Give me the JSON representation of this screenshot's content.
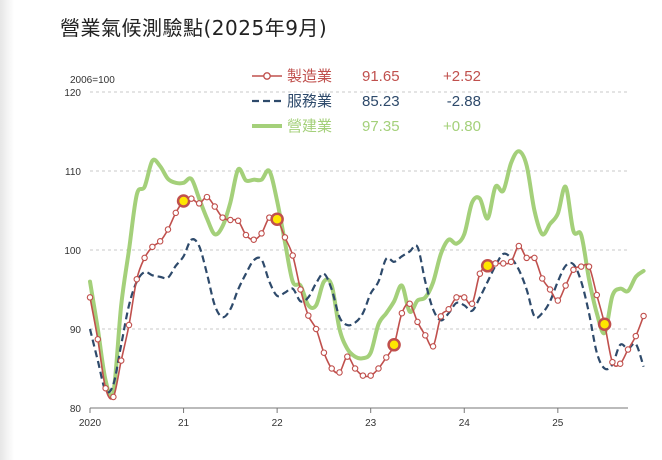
{
  "title": "營業氣候測驗點(2025年9月)",
  "chart_data": {
    "type": "line",
    "unit_label": "2006=100",
    "ylim": [
      80,
      120
    ],
    "yticks": [
      80,
      90,
      100,
      110,
      120
    ],
    "xlim": [
      2020.0,
      2025.75
    ],
    "xticks": [
      {
        "x": 2020,
        "label": "2020"
      },
      {
        "x": 2021,
        "label": "21"
      },
      {
        "x": 2022,
        "label": "22"
      },
      {
        "x": 2023,
        "label": "23"
      },
      {
        "x": 2024,
        "label": "24"
      },
      {
        "x": 2025,
        "label": "25"
      }
    ],
    "grid": "horizontal dashed",
    "legend_position": "top-center",
    "series": [
      {
        "name": "製造業",
        "latest": "91.65",
        "change": "+2.52",
        "color": "#c0504d",
        "style": "solid-markers",
        "x_start": 2020.0,
        "x_step": 0.0833333,
        "values": [
          94.0,
          88.7,
          82.5,
          81.4,
          86.0,
          90.5,
          96.3,
          99.0,
          100.4,
          101.1,
          102.6,
          104.7,
          106.2,
          106.5,
          105.9,
          106.7,
          105.5,
          104.1,
          103.8,
          103.7,
          101.9,
          101.3,
          102.1,
          104.1,
          103.9,
          101.6,
          99.3,
          95.0,
          91.7,
          90.0,
          87.0,
          85.0,
          84.5,
          86.5,
          85.0,
          84.1,
          84.1,
          85.0,
          86.4,
          88.0,
          92.0,
          93.2,
          90.9,
          89.2,
          87.8,
          91.6,
          92.5,
          94.0,
          94.0,
          93.2,
          97.0,
          98.0,
          98.3,
          98.3,
          98.5,
          100.5,
          99.0,
          99.0,
          96.4,
          95.0,
          93.6,
          95.5,
          97.5,
          97.9,
          97.9,
          94.3,
          90.6,
          85.8,
          85.6,
          87.4,
          89.1,
          91.65
        ],
        "highlights": [
          12,
          24,
          39,
          51,
          66
        ]
      },
      {
        "name": "服務業",
        "latest": "85.23",
        "change": "-2.88",
        "color": "#2e4a6b",
        "style": "dashed",
        "x_start": 2020.0,
        "x_step": 0.0833333,
        "values": [
          90.0,
          86.0,
          82.2,
          83.0,
          88.0,
          93.0,
          96.0,
          97.2,
          96.8,
          96.6,
          96.5,
          98.0,
          99.2,
          101.3,
          100.5,
          97.0,
          93.0,
          91.5,
          92.5,
          95.0,
          97.0,
          98.7,
          98.8,
          96.0,
          94.2,
          94.6,
          95.1,
          93.5,
          94.0,
          95.8,
          97.0,
          95.0,
          91.5,
          90.5,
          90.8,
          92.0,
          94.5,
          96.0,
          98.9,
          98.5,
          99.2,
          99.8,
          100.4,
          96.0,
          92.5,
          91.1,
          92.0,
          93.3,
          93.0,
          92.3,
          94.0,
          96.0,
          98.0,
          99.5,
          99.0,
          97.5,
          95.0,
          91.6,
          92.0,
          93.5,
          96.0,
          98.0,
          98.2,
          96.0,
          92.0,
          87.0,
          85.0,
          85.5,
          88.0,
          87.5,
          88.1,
          85.23
        ]
      },
      {
        "name": "營建業",
        "latest": "97.35",
        "change": "+0.80",
        "color": "#a4d07a",
        "style": "thick",
        "x_start": 2020.0,
        "x_step": 0.0833333,
        "values": [
          96.0,
          90.0,
          83.5,
          82.0,
          93.0,
          100.0,
          107.0,
          108.0,
          111.3,
          110.6,
          109.0,
          108.5,
          108.5,
          109.0,
          106.5,
          104.0,
          102.0,
          103.0,
          106.0,
          110.2,
          108.8,
          108.9,
          108.9,
          110.0,
          106.2,
          101.0,
          96.0,
          95.5,
          93.0,
          93.0,
          96.0,
          95.5,
          90.0,
          87.5,
          86.5,
          86.3,
          87.0,
          90.6,
          92.0,
          93.5,
          95.5,
          92.2,
          93.6,
          94.0,
          95.9,
          99.5,
          101.3,
          100.8,
          102.0,
          106.0,
          106.5,
          104.0,
          108.0,
          107.5,
          111.0,
          112.5,
          110.7,
          105.0,
          102.0,
          103.3,
          104.6,
          108.0,
          102.4,
          101.9,
          96.3,
          92.0,
          89.5,
          94.2,
          95.1,
          94.8,
          96.6,
          97.35
        ]
      }
    ]
  }
}
